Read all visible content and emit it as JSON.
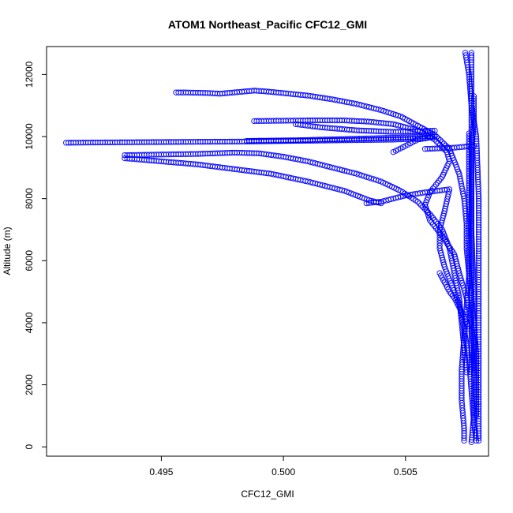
{
  "chart_data": {
    "type": "scatter",
    "title": "ATOM1 Northeast_Pacific CFC12_GMI",
    "xlabel": "CFC12_GMI",
    "ylabel": "Altitude (m)",
    "xlim": [
      0.4903,
      0.5084
    ],
    "ylim": [
      -300,
      12900
    ],
    "xticks": [
      0.495,
      0.5,
      0.505
    ],
    "xtick_labels": [
      "0.495",
      "0.500",
      "0.505"
    ],
    "yticks": [
      0,
      2000,
      4000,
      6000,
      8000,
      10000,
      12000
    ],
    "ytick_labels": [
      "0",
      "2000",
      "4000",
      "6000",
      "8000",
      "10000",
      "12000"
    ],
    "marker": "open-circle",
    "color": "#0000FF",
    "series": [
      {
        "name": "profile-1",
        "points": [
          [
            0.50745,
            12700
          ],
          [
            0.5076,
            12000
          ],
          [
            0.5077,
            11000
          ],
          [
            0.5079,
            10000
          ],
          [
            0.508,
            8000
          ],
          [
            0.508,
            6000
          ],
          [
            0.508,
            4000
          ],
          [
            0.508,
            2000
          ],
          [
            0.508,
            200
          ]
        ]
      },
      {
        "name": "profile-2",
        "points": [
          [
            0.5077,
            12700
          ],
          [
            0.5077,
            11000
          ],
          [
            0.5077,
            9000
          ],
          [
            0.5077,
            7000
          ],
          [
            0.5078,
            5000
          ],
          [
            0.5078,
            3000
          ],
          [
            0.5078,
            1000
          ],
          [
            0.5077,
            150
          ]
        ]
      },
      {
        "name": "profile-3",
        "points": [
          [
            0.5076,
            10100
          ],
          [
            0.5076,
            9500
          ],
          [
            0.5076,
            8500
          ],
          [
            0.5076,
            7500
          ],
          [
            0.5076,
            6500
          ],
          [
            0.5076,
            5500
          ],
          [
            0.5075,
            4500
          ],
          [
            0.5074,
            3500
          ],
          [
            0.5073,
            2500
          ],
          [
            0.5073,
            1500
          ],
          [
            0.5074,
            600
          ],
          [
            0.5074,
            200
          ]
        ]
      },
      {
        "name": "profile-4",
        "points": [
          [
            0.5078,
            11300
          ],
          [
            0.5078,
            10500
          ],
          [
            0.5077,
            9500
          ],
          [
            0.5077,
            8500
          ],
          [
            0.5077,
            7500
          ],
          [
            0.5077,
            6500
          ],
          [
            0.5077,
            5500
          ],
          [
            0.5077,
            4500
          ],
          [
            0.5077,
            3500
          ],
          [
            0.5077,
            2500
          ]
        ]
      },
      {
        "name": "level-9800",
        "points": [
          [
            0.4911,
            9800
          ],
          [
            0.4925,
            9810
          ],
          [
            0.4945,
            9820
          ],
          [
            0.4965,
            9830
          ],
          [
            0.4985,
            9840
          ],
          [
            0.5005,
            9860
          ],
          [
            0.5025,
            9880
          ],
          [
            0.5045,
            9900
          ],
          [
            0.5058,
            9940
          ],
          [
            0.5062,
            10000
          ],
          [
            0.5055,
            9900
          ],
          [
            0.505,
            9700
          ],
          [
            0.5045,
            9500
          ]
        ]
      },
      {
        "name": "level-10000",
        "points": [
          [
            0.4985,
            9860
          ],
          [
            0.5005,
            9880
          ],
          [
            0.5025,
            9920
          ],
          [
            0.5045,
            9960
          ],
          [
            0.5055,
            9990
          ],
          [
            0.5061,
            10010
          ]
        ]
      },
      {
        "name": "level-10500",
        "points": [
          [
            0.4988,
            10500
          ],
          [
            0.5,
            10510
          ],
          [
            0.501,
            10520
          ],
          [
            0.5025,
            10520
          ],
          [
            0.5035,
            10480
          ],
          [
            0.5045,
            10400
          ],
          [
            0.5055,
            10200
          ],
          [
            0.5062,
            9900
          ],
          [
            0.5067,
            9500
          ],
          [
            0.5068,
            9200
          ],
          [
            0.5065,
            8700
          ],
          [
            0.506,
            8200
          ],
          [
            0.5058,
            7800
          ],
          [
            0.506,
            7300
          ],
          [
            0.5065,
            6800
          ],
          [
            0.507,
            6200
          ],
          [
            0.5072,
            5600
          ],
          [
            0.5075,
            4800
          ],
          [
            0.5077,
            4000
          ],
          [
            0.5078,
            3200
          ],
          [
            0.5078,
            2400
          ]
        ]
      },
      {
        "name": "level-10400",
        "points": [
          [
            0.5005,
            10400
          ],
          [
            0.5015,
            10300
          ],
          [
            0.503,
            10200
          ],
          [
            0.5045,
            10150
          ],
          [
            0.5055,
            10170
          ],
          [
            0.5062,
            10190
          ]
        ]
      },
      {
        "name": "level-11400",
        "points": [
          [
            0.4956,
            11420
          ],
          [
            0.496,
            11420
          ],
          [
            0.4965,
            11410
          ],
          [
            0.497,
            11400
          ],
          [
            0.4974,
            11380
          ],
          [
            0.4988,
            11480
          ],
          [
            0.4992,
            11460
          ],
          [
            0.5,
            11400
          ],
          [
            0.501,
            11320
          ],
          [
            0.502,
            11200
          ],
          [
            0.503,
            11050
          ],
          [
            0.504,
            10850
          ],
          [
            0.5048,
            10650
          ],
          [
            0.5055,
            10350
          ],
          [
            0.5062,
            10050
          ],
          [
            0.5068,
            9600
          ],
          [
            0.5072,
            8800
          ],
          [
            0.5074,
            8000
          ],
          [
            0.5075,
            7200
          ],
          [
            0.5075,
            6400
          ],
          [
            0.5076,
            5600
          ],
          [
            0.5077,
            4800
          ],
          [
            0.5078,
            4000
          ],
          [
            0.5079,
            3000
          ],
          [
            0.5079,
            2000
          ],
          [
            0.5079,
            1000
          ]
        ]
      },
      {
        "name": "level-9400",
        "points": [
          [
            0.4935,
            9400
          ],
          [
            0.495,
            9420
          ],
          [
            0.4965,
            9440
          ],
          [
            0.498,
            9480
          ],
          [
            0.499,
            9460
          ],
          [
            0.5,
            9350
          ],
          [
            0.501,
            9200
          ],
          [
            0.502,
            9000
          ],
          [
            0.503,
            8800
          ],
          [
            0.504,
            8550
          ],
          [
            0.5048,
            8250
          ],
          [
            0.5055,
            7900
          ],
          [
            0.506,
            7500
          ],
          [
            0.5065,
            7000
          ],
          [
            0.5068,
            6400
          ],
          [
            0.507,
            5600
          ],
          [
            0.5072,
            4800
          ],
          [
            0.5073,
            4000
          ],
          [
            0.5074,
            3200
          ],
          [
            0.5075,
            2400
          ]
        ]
      },
      {
        "name": "level-9100",
        "points": [
          [
            0.4935,
            9300
          ],
          [
            0.495,
            9200
          ],
          [
            0.4965,
            9100
          ],
          [
            0.498,
            8950
          ],
          [
            0.4995,
            8800
          ],
          [
            0.501,
            8550
          ],
          [
            0.5025,
            8250
          ],
          [
            0.5035,
            7950
          ],
          [
            0.504,
            7850
          ]
        ]
      },
      {
        "name": "level-7800",
        "points": [
          [
            0.5034,
            7850
          ],
          [
            0.504,
            7900
          ],
          [
            0.5045,
            8000
          ],
          [
            0.505,
            8100
          ],
          [
            0.5058,
            8200
          ],
          [
            0.5068,
            8300
          ],
          [
            0.5066,
            7600
          ],
          [
            0.5064,
            7000
          ],
          [
            0.5064,
            6400
          ],
          [
            0.5066,
            5800
          ],
          [
            0.5069,
            5200
          ],
          [
            0.5072,
            4600
          ],
          [
            0.5074,
            3800
          ],
          [
            0.5076,
            2800
          ],
          [
            0.5077,
            1800
          ],
          [
            0.5078,
            800
          ],
          [
            0.5079,
            200
          ]
        ]
      },
      {
        "name": "level-9600",
        "points": [
          [
            0.5058,
            9600
          ],
          [
            0.5064,
            9620
          ],
          [
            0.507,
            9640
          ],
          [
            0.5075,
            9680
          ],
          [
            0.5078,
            9700
          ]
        ]
      },
      {
        "name": "lower-cluster",
        "points": [
          [
            0.5064,
            5600
          ],
          [
            0.5066,
            5300
          ],
          [
            0.5068,
            5000
          ],
          [
            0.507,
            4800
          ],
          [
            0.5072,
            4500
          ],
          [
            0.5074,
            4200
          ],
          [
            0.5076,
            3800
          ]
        ]
      }
    ]
  }
}
